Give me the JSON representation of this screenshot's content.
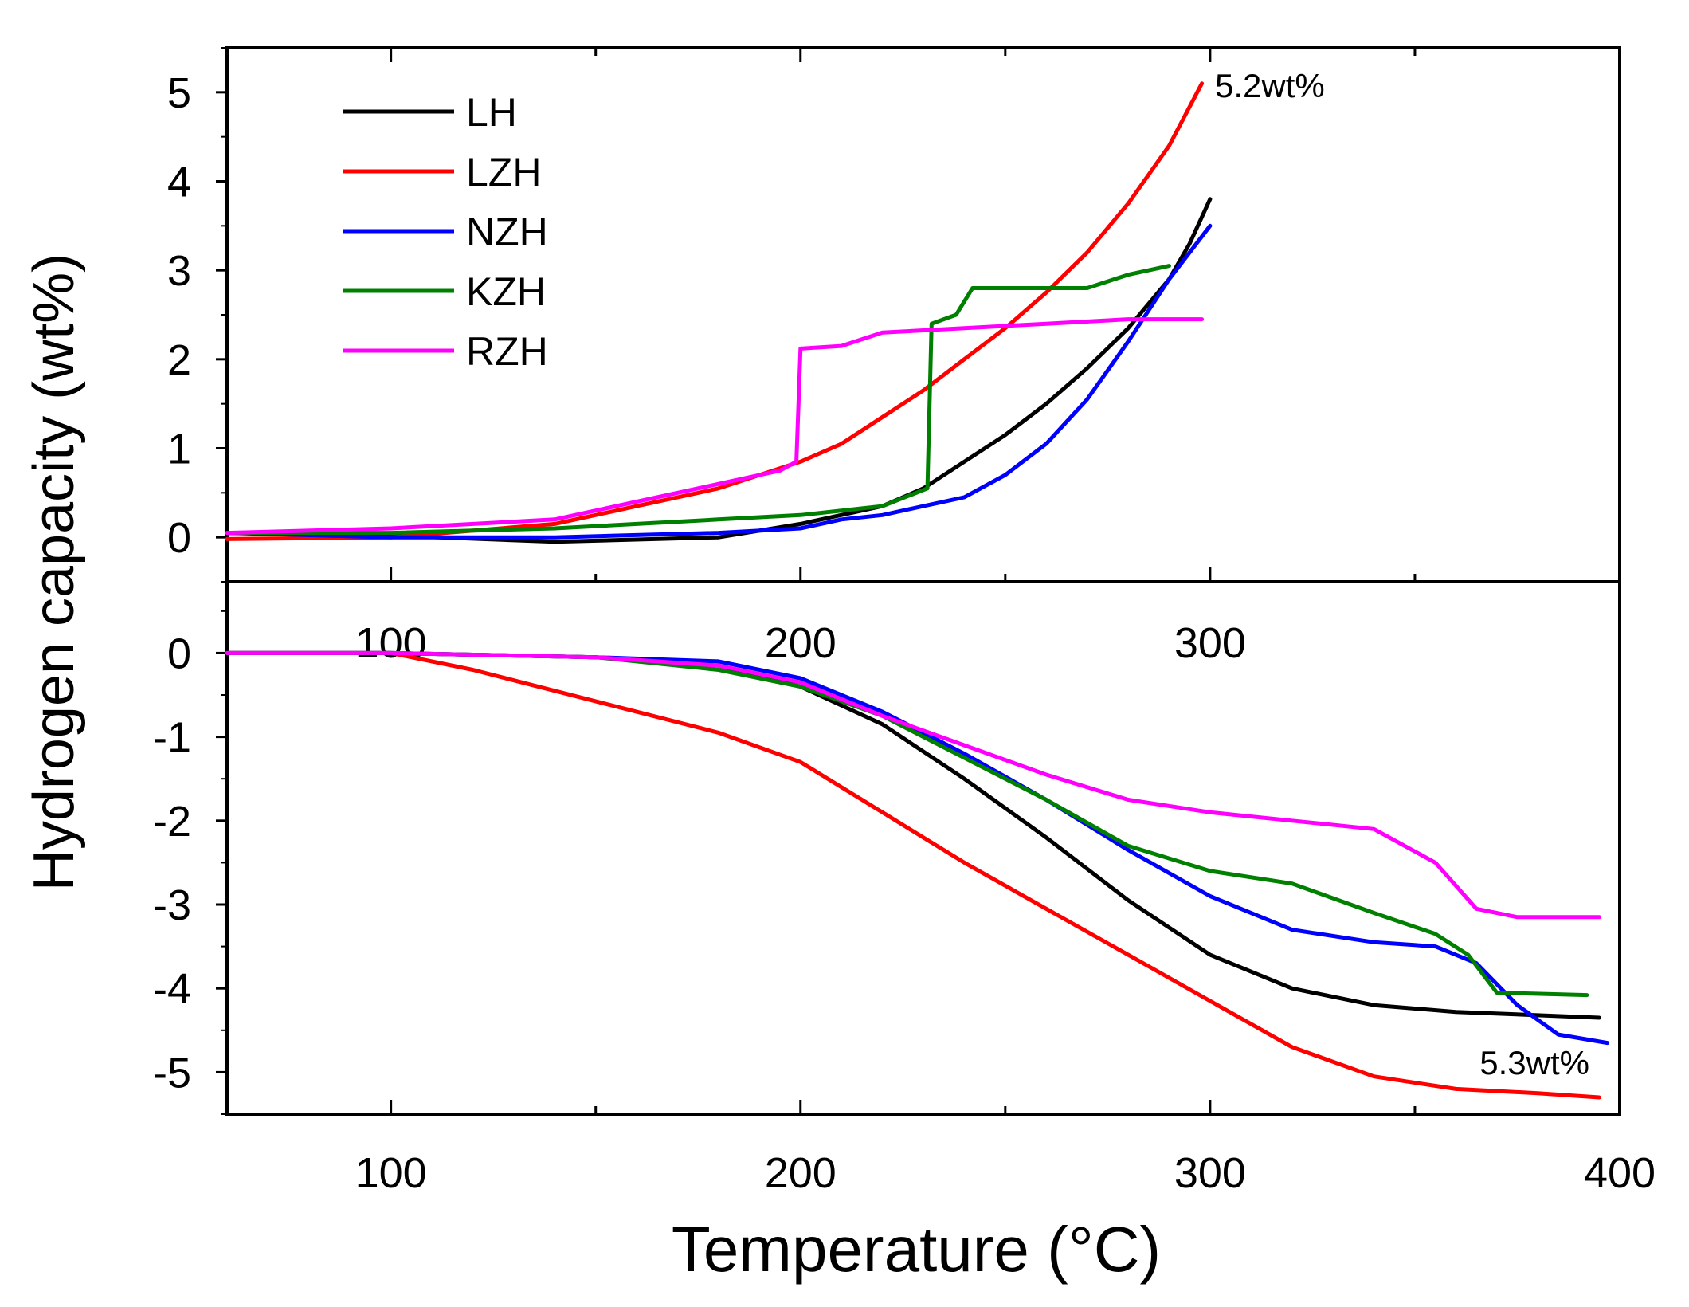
{
  "chart_data": {
    "type": "line",
    "ylabel": "Hydrogen capacity (wt%)",
    "xlabel": "Temperature (°C)",
    "legend": {
      "placement": "top-left",
      "entries": [
        "LH",
        "LZH",
        "NZH",
        "KZH",
        "RZH"
      ]
    },
    "colors": {
      "LH": "#000000",
      "LZH": "#ff0000",
      "NZH": "#0000ff",
      "KZH": "#008000",
      "RZH": "#ff00ff"
    },
    "panels": [
      {
        "name": "top",
        "xlim": [
          60,
          400
        ],
        "ylim": [
          -0.5,
          5.5
        ],
        "yticks": [
          "0",
          "1",
          "2",
          "3",
          "4",
          "5"
        ],
        "xtick_labels": [
          "100",
          "200",
          "300"
        ],
        "annotation": "5.2wt%",
        "series": [
          {
            "name": "LH",
            "points": [
              [
                60,
                0.05
              ],
              [
                100,
                0.02
              ],
              [
                140,
                -0.05
              ],
              [
                180,
                0.0
              ],
              [
                200,
                0.15
              ],
              [
                220,
                0.35
              ],
              [
                230,
                0.55
              ],
              [
                240,
                0.85
              ],
              [
                250,
                1.15
              ],
              [
                260,
                1.5
              ],
              [
                270,
                1.9
              ],
              [
                280,
                2.35
              ],
              [
                290,
                2.9
              ],
              [
                295,
                3.3
              ],
              [
                300,
                3.8
              ]
            ]
          },
          {
            "name": "LZH",
            "points": [
              [
                60,
                -0.02
              ],
              [
                100,
                0.0
              ],
              [
                140,
                0.15
              ],
              [
                160,
                0.35
              ],
              [
                180,
                0.55
              ],
              [
                200,
                0.85
              ],
              [
                210,
                1.05
              ],
              [
                220,
                1.35
              ],
              [
                230,
                1.65
              ],
              [
                240,
                2.0
              ],
              [
                250,
                2.35
              ],
              [
                260,
                2.75
              ],
              [
                270,
                3.2
              ],
              [
                280,
                3.75
              ],
              [
                290,
                4.4
              ],
              [
                298,
                5.1
              ]
            ]
          },
          {
            "name": "NZH",
            "points": [
              [
                60,
                0.05
              ],
              [
                100,
                0.0
              ],
              [
                140,
                0.0
              ],
              [
                180,
                0.05
              ],
              [
                200,
                0.1
              ],
              [
                210,
                0.2
              ],
              [
                220,
                0.25
              ],
              [
                230,
                0.35
              ],
              [
                240,
                0.45
              ],
              [
                250,
                0.7
              ],
              [
                260,
                1.05
              ],
              [
                270,
                1.55
              ],
              [
                280,
                2.2
              ],
              [
                290,
                2.9
              ],
              [
                300,
                3.5
              ]
            ]
          },
          {
            "name": "KZH",
            "points": [
              [
                60,
                0.05
              ],
              [
                100,
                0.05
              ],
              [
                140,
                0.1
              ],
              [
                180,
                0.2
              ],
              [
                200,
                0.25
              ],
              [
                220,
                0.35
              ],
              [
                231,
                0.55
              ],
              [
                232,
                2.4
              ],
              [
                238,
                2.5
              ],
              [
                242,
                2.8
              ],
              [
                255,
                2.8
              ],
              [
                270,
                2.8
              ],
              [
                280,
                2.95
              ],
              [
                290,
                3.05
              ]
            ]
          },
          {
            "name": "RZH",
            "points": [
              [
                60,
                0.05
              ],
              [
                100,
                0.1
              ],
              [
                140,
                0.2
              ],
              [
                160,
                0.4
              ],
              [
                180,
                0.6
              ],
              [
                195,
                0.75
              ],
              [
                199,
                0.85
              ],
              [
                200,
                2.12
              ],
              [
                210,
                2.15
              ],
              [
                220,
                2.3
              ],
              [
                240,
                2.35
              ],
              [
                260,
                2.4
              ],
              [
                280,
                2.45
              ],
              [
                298,
                2.45
              ]
            ]
          }
        ]
      },
      {
        "name": "bottom",
        "xlim": [
          60,
          400
        ],
        "ylim": [
          -5.5,
          0.85
        ],
        "yticks": [
          "0",
          "-1",
          "-2",
          "-3",
          "-4",
          "-5"
        ],
        "xtick_labels": [
          "100",
          "200",
          "300",
          "400"
        ],
        "annotation": "5.3wt%",
        "series": [
          {
            "name": "LH",
            "points": [
              [
                60,
                0.0
              ],
              [
                100,
                0.0
              ],
              [
                150,
                -0.05
              ],
              [
                180,
                -0.15
              ],
              [
                200,
                -0.4
              ],
              [
                220,
                -0.85
              ],
              [
                240,
                -1.5
              ],
              [
                260,
                -2.2
              ],
              [
                280,
                -2.95
              ],
              [
                300,
                -3.6
              ],
              [
                320,
                -4.0
              ],
              [
                340,
                -4.2
              ],
              [
                360,
                -4.28
              ],
              [
                380,
                -4.32
              ],
              [
                395,
                -4.35
              ]
            ]
          },
          {
            "name": "LZH",
            "points": [
              [
                60,
                0.0
              ],
              [
                100,
                0.0
              ],
              [
                120,
                -0.2
              ],
              [
                140,
                -0.45
              ],
              [
                160,
                -0.7
              ],
              [
                180,
                -0.95
              ],
              [
                200,
                -1.3
              ],
              [
                220,
                -1.9
              ],
              [
                240,
                -2.5
              ],
              [
                260,
                -3.05
              ],
              [
                280,
                -3.6
              ],
              [
                300,
                -4.15
              ],
              [
                320,
                -4.7
              ],
              [
                340,
                -5.05
              ],
              [
                360,
                -5.2
              ],
              [
                380,
                -5.25
              ],
              [
                395,
                -5.3
              ]
            ]
          },
          {
            "name": "NZH",
            "points": [
              [
                60,
                0.0
              ],
              [
                100,
                0.0
              ],
              [
                150,
                -0.05
              ],
              [
                180,
                -0.1
              ],
              [
                200,
                -0.3
              ],
              [
                220,
                -0.7
              ],
              [
                240,
                -1.2
              ],
              [
                260,
                -1.75
              ],
              [
                280,
                -2.35
              ],
              [
                300,
                -2.9
              ],
              [
                320,
                -3.3
              ],
              [
                340,
                -3.45
              ],
              [
                355,
                -3.5
              ],
              [
                365,
                -3.7
              ],
              [
                375,
                -4.2
              ],
              [
                385,
                -4.55
              ],
              [
                397,
                -4.65
              ]
            ]
          },
          {
            "name": "KZH",
            "points": [
              [
                60,
                0.0
              ],
              [
                100,
                0.0
              ],
              [
                150,
                -0.05
              ],
              [
                180,
                -0.2
              ],
              [
                200,
                -0.4
              ],
              [
                220,
                -0.75
              ],
              [
                240,
                -1.25
              ],
              [
                260,
                -1.75
              ],
              [
                280,
                -2.3
              ],
              [
                300,
                -2.6
              ],
              [
                320,
                -2.75
              ],
              [
                340,
                -3.1
              ],
              [
                355,
                -3.35
              ],
              [
                363,
                -3.6
              ],
              [
                370,
                -4.05
              ],
              [
                392,
                -4.08
              ]
            ]
          },
          {
            "name": "RZH",
            "points": [
              [
                60,
                0.0
              ],
              [
                100,
                0.0
              ],
              [
                150,
                -0.05
              ],
              [
                180,
                -0.15
              ],
              [
                200,
                -0.35
              ],
              [
                220,
                -0.75
              ],
              [
                240,
                -1.1
              ],
              [
                260,
                -1.45
              ],
              [
                280,
                -1.75
              ],
              [
                300,
                -1.9
              ],
              [
                320,
                -2.0
              ],
              [
                340,
                -2.1
              ],
              [
                355,
                -2.5
              ],
              [
                365,
                -3.05
              ],
              [
                375,
                -3.15
              ],
              [
                395,
                -3.15
              ]
            ]
          }
        ]
      }
    ]
  }
}
